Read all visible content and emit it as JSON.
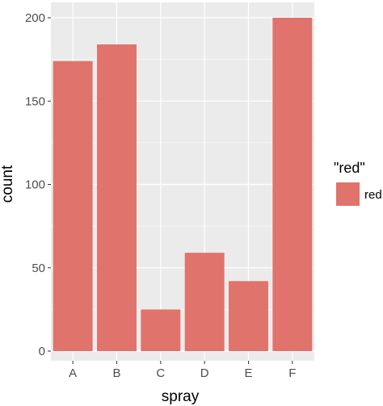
{
  "chart_data": {
    "type": "bar",
    "categories": [
      "A",
      "B",
      "C",
      "D",
      "E",
      "F"
    ],
    "values": [
      174,
      184,
      25,
      59,
      42,
      200
    ],
    "xlabel": "spray",
    "ylabel": "count",
    "ylim": [
      0,
      200
    ],
    "yticks": [
      0,
      50,
      100,
      150,
      200
    ],
    "ytick_labels": [
      "0",
      "50",
      "100",
      "150",
      "200"
    ],
    "grid": true,
    "panel_color": "#ebebeb",
    "bar_color": "#e0736b",
    "legend": {
      "position": "right",
      "title": "\"red\"",
      "entries": [
        {
          "label": "red",
          "color": "#e0736b"
        }
      ]
    }
  }
}
